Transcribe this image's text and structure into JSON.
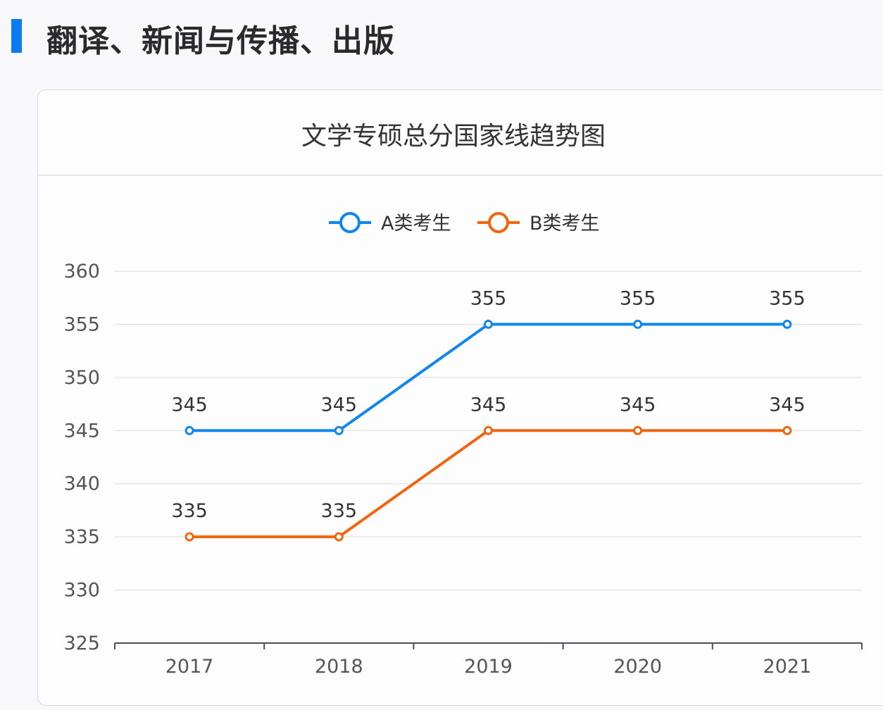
{
  "header": {
    "title": "翻译、新闻与传播、出版",
    "accent": "#0a7cf0"
  },
  "chart_data": {
    "type": "line",
    "title": "文学专硕总分国家线趋势图",
    "categories": [
      "2017",
      "2018",
      "2019",
      "2020",
      "2021"
    ],
    "series": [
      {
        "name": "A类考生",
        "values": [
          345,
          345,
          355,
          355,
          355
        ],
        "color": "#1186ec"
      },
      {
        "name": "B类考生",
        "values": [
          335,
          335,
          345,
          345,
          345
        ],
        "color": "#f0650e"
      }
    ],
    "ylim": [
      325,
      360
    ],
    "yticks": [
      325,
      330,
      335,
      340,
      345,
      350,
      355,
      360
    ],
    "grid": true,
    "data_labels": true,
    "legend": "top-center"
  }
}
